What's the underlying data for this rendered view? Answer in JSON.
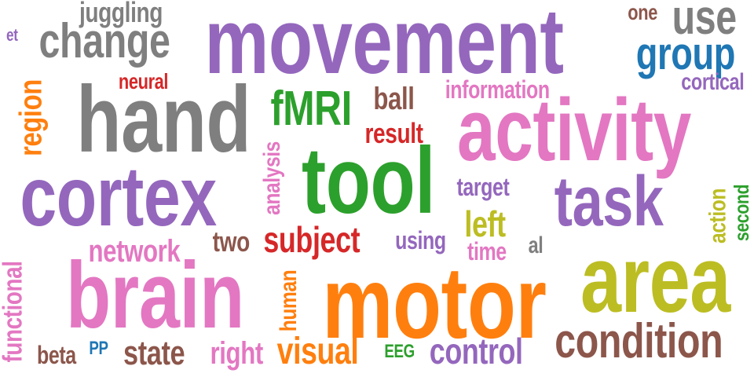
{
  "palette": {
    "purple": "#9467bd",
    "gray": "#7f7f7f",
    "pink": "#e377c2",
    "orange": "#ff7f0e",
    "olive": "#bcbd22",
    "green": "#2ca02c",
    "brown": "#8c564b",
    "red": "#d62728",
    "blue": "#1f77b4"
  },
  "words": {
    "movement": "movement",
    "hand": "hand",
    "cortex": "cortex",
    "tool": "tool",
    "activity": "activity",
    "motor": "motor",
    "area": "area",
    "brain": "brain",
    "task": "task",
    "change": "change",
    "use": "use",
    "group": "group",
    "condition": "condition",
    "fmri": "fMRI",
    "subject": "subject",
    "control": "control",
    "visual": "visual",
    "juggling": "juggling",
    "one": "one",
    "et": "et",
    "neural": "neural",
    "region": "region",
    "ball": "ball",
    "information": "information",
    "cortical": "cortical",
    "result": "result",
    "analysis": "analysis",
    "target": "target",
    "left": "left",
    "action": "action",
    "second": "second",
    "network": "network",
    "two": "two",
    "using": "using",
    "time": "time",
    "al": "al",
    "functional": "functional",
    "human": "human",
    "beta": "beta",
    "pp": "PP",
    "state": "state",
    "right": "right",
    "eeg": "EEG"
  }
}
